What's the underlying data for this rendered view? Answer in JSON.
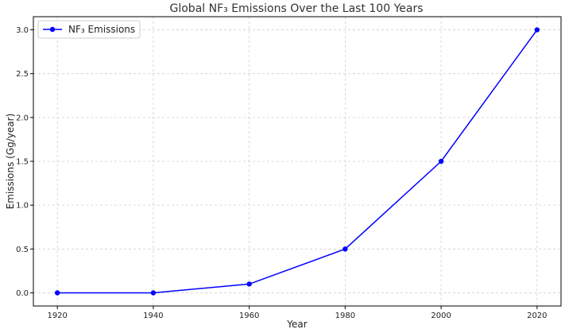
{
  "chart_data": {
    "type": "line",
    "title": "Global NF₃ Emissions Over the Last 100 Years",
    "xlabel": "Year",
    "ylabel": "Emissions (Gg/year)",
    "x": [
      1920,
      1940,
      1960,
      1980,
      2000,
      2020
    ],
    "series": [
      {
        "name": "NF₃ Emissions",
        "values": [
          0.0,
          0.0,
          0.1,
          0.5,
          1.5,
          3.0
        ],
        "color": "#0000ff",
        "marker": "circle"
      }
    ],
    "xlim": [
      1915,
      2025
    ],
    "ylim": [
      -0.15,
      3.15
    ],
    "x_ticks": [
      "1920",
      "1940",
      "1960",
      "1980",
      "2000",
      "2020"
    ],
    "y_ticks": [
      "0.0",
      "0.5",
      "1.0",
      "1.5",
      "2.0",
      "2.5",
      "3.0"
    ],
    "grid": true,
    "legend_position": "top-left"
  }
}
